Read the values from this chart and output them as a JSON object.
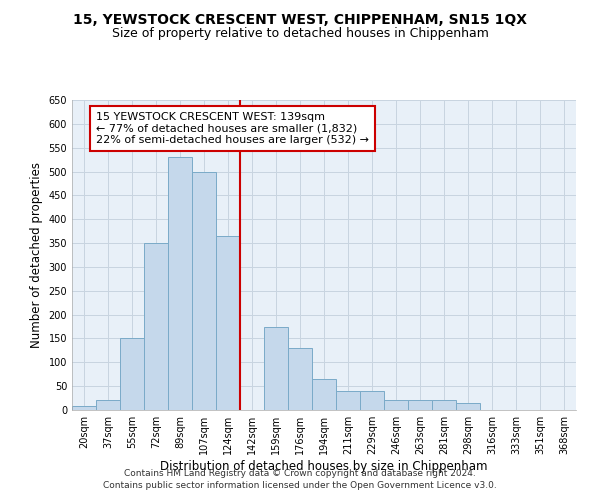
{
  "title": "15, YEWSTOCK CRESCENT WEST, CHIPPENHAM, SN15 1QX",
  "subtitle": "Size of property relative to detached houses in Chippenham",
  "xlabel": "Distribution of detached houses by size in Chippenham",
  "ylabel": "Number of detached properties",
  "categories": [
    "20sqm",
    "37sqm",
    "55sqm",
    "72sqm",
    "89sqm",
    "107sqm",
    "124sqm",
    "142sqm",
    "159sqm",
    "176sqm",
    "194sqm",
    "211sqm",
    "229sqm",
    "246sqm",
    "263sqm",
    "281sqm",
    "298sqm",
    "316sqm",
    "333sqm",
    "351sqm",
    "368sqm"
  ],
  "values": [
    8,
    20,
    150,
    350,
    530,
    500,
    365,
    0,
    175,
    130,
    65,
    40,
    40,
    20,
    20,
    20,
    15,
    0,
    0,
    0,
    0
  ],
  "bar_color": "#c5d8eb",
  "bar_edge_color": "#7aaac8",
  "vline_color": "#cc0000",
  "vline_xindex": 7,
  "annotation_line1": "15 YEWSTOCK CRESCENT WEST: 139sqm",
  "annotation_line2": "← 77% of detached houses are smaller (1,832)",
  "annotation_line3": "22% of semi-detached houses are larger (532) →",
  "annotation_box_color": "#cc0000",
  "annotation_box_bg": "#ffffff",
  "ylim": [
    0,
    650
  ],
  "yticks": [
    0,
    50,
    100,
    150,
    200,
    250,
    300,
    350,
    400,
    450,
    500,
    550,
    600,
    650
  ],
  "bg_color": "#e8f0f8",
  "grid_color": "#c8d4e0",
  "footer_line1": "Contains HM Land Registry data © Crown copyright and database right 2024.",
  "footer_line2": "Contains public sector information licensed under the Open Government Licence v3.0.",
  "title_fontsize": 10,
  "subtitle_fontsize": 9,
  "axis_label_fontsize": 8.5,
  "tick_fontsize": 7,
  "annotation_fontsize": 8,
  "footer_fontsize": 6.5
}
